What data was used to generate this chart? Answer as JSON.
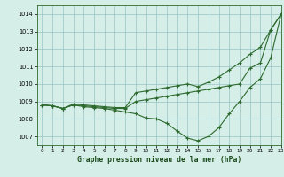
{
  "title": "Graphe pression niveau de la mer (hPa)",
  "background_color": "#d5eee8",
  "line_color": "#2d6a2d",
  "xlim": [
    -0.5,
    23
  ],
  "ylim": [
    1006.5,
    1014.5
  ],
  "yticks": [
    1007,
    1008,
    1009,
    1010,
    1011,
    1012,
    1013,
    1014
  ],
  "xticks": [
    0,
    1,
    2,
    3,
    4,
    5,
    6,
    7,
    8,
    9,
    10,
    11,
    12,
    13,
    14,
    15,
    16,
    17,
    18,
    19,
    20,
    21,
    22,
    23
  ],
  "series": [
    [
      1008.8,
      1008.75,
      1008.6,
      1008.8,
      1008.7,
      1008.65,
      1008.6,
      1008.5,
      1008.4,
      1008.3,
      1008.05,
      1008.0,
      1007.75,
      1007.3,
      1006.9,
      1006.75,
      1007.0,
      1007.5,
      1008.3,
      1009.0,
      1009.8,
      1010.3,
      1011.5,
      1014.0
    ],
    [
      1008.8,
      1008.75,
      1008.6,
      1008.8,
      1008.75,
      1008.7,
      1008.65,
      1008.6,
      1008.6,
      1009.0,
      1009.1,
      1009.2,
      1009.3,
      1009.4,
      1009.5,
      1009.6,
      1009.7,
      1009.8,
      1009.9,
      1010.0,
      1010.9,
      1011.2,
      1013.1,
      1014.0
    ],
    [
      1008.8,
      1008.75,
      1008.6,
      1008.85,
      1008.8,
      1008.75,
      1008.7,
      1008.65,
      1008.65,
      1009.5,
      1009.6,
      1009.7,
      1009.8,
      1009.9,
      1010.0,
      1009.85,
      1010.1,
      1010.4,
      1010.8,
      1011.2,
      1011.7,
      1012.1,
      1013.1,
      1014.0
    ]
  ]
}
